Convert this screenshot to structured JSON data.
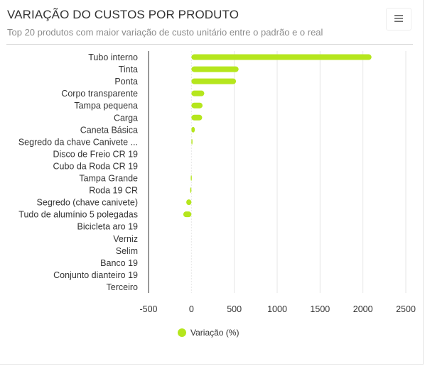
{
  "header": {
    "title": "VARIAÇÃO DO CUSTOS POR PRODUTO",
    "subtitle": "Top 20 produtos com maior variação de custo unitário entre o padrão e o real",
    "menu_icon": "hamburger-menu-icon"
  },
  "colors": {
    "bar": "#b5e61d",
    "grid": "#e6e6e6",
    "axis": "#333333",
    "text": "#333333"
  },
  "chart_data": {
    "type": "bar",
    "orientation": "horizontal",
    "categories": [
      "Tubo interno",
      "Tinta",
      "Ponta",
      "Corpo transparente",
      "Tampa pequena",
      "Carga",
      "Caneta Básica",
      "Segredo da chave Canivete ...",
      "Disco de Freio CR 19",
      "Cubo da Roda CR 19",
      "Tampa Grande",
      "Roda 19 CR",
      "Segredo (chave canivete)",
      "Tudo de alumínio 5 polegadas",
      "Bicicleta aro 19",
      "Verniz",
      "Selim",
      "Banco 19",
      "Conjunto dianteiro 19",
      "Terceiro"
    ],
    "series": [
      {
        "name": "Variação (%)",
        "values": [
          2100,
          550,
          520,
          150,
          130,
          125,
          40,
          2,
          0,
          0,
          -8,
          -15,
          -60,
          -95,
          0,
          0,
          0,
          0,
          0,
          0
        ]
      }
    ],
    "xlim": [
      -500,
      2500
    ],
    "x_ticks": [
      -500,
      0,
      500,
      1000,
      1500,
      2000,
      2500
    ],
    "grid": true,
    "legend_position": "bottom"
  }
}
